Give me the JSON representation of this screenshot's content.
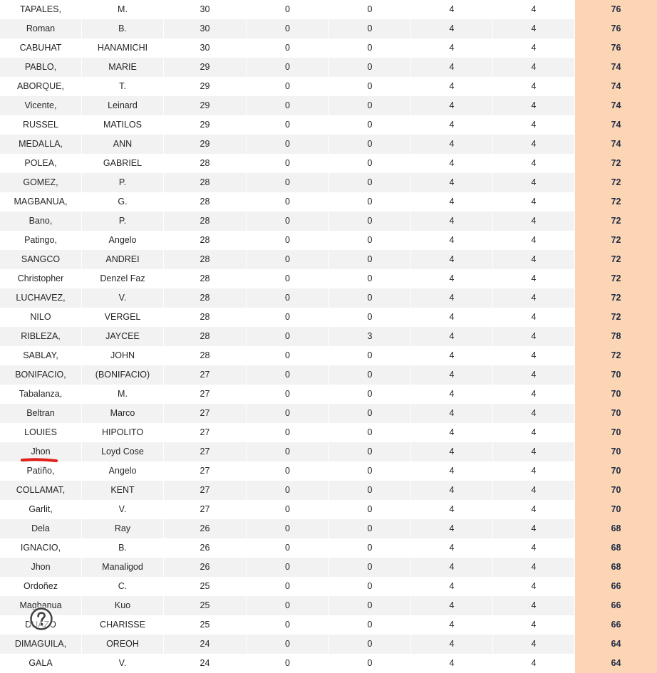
{
  "rows": [
    [
      "TAPALES,",
      "M.",
      "30",
      "0",
      "0",
      "4",
      "4",
      "76"
    ],
    [
      "Roman",
      "B.",
      "30",
      "0",
      "0",
      "4",
      "4",
      "76"
    ],
    [
      "CABUHAT",
      "HANAMICHI",
      "30",
      "0",
      "0",
      "4",
      "4",
      "76"
    ],
    [
      "PABLO,",
      "MARIE",
      "29",
      "0",
      "0",
      "4",
      "4",
      "74"
    ],
    [
      "ABORQUE,",
      "T.",
      "29",
      "0",
      "0",
      "4",
      "4",
      "74"
    ],
    [
      "Vicente,",
      "Leinard",
      "29",
      "0",
      "0",
      "4",
      "4",
      "74"
    ],
    [
      "RUSSEL",
      "MATILOS",
      "29",
      "0",
      "0",
      "4",
      "4",
      "74"
    ],
    [
      "MEDALLA,",
      "ANN",
      "29",
      "0",
      "0",
      "4",
      "4",
      "74"
    ],
    [
      "POLEA,",
      "GABRIEL",
      "28",
      "0",
      "0",
      "4",
      "4",
      "72"
    ],
    [
      "GOMEZ,",
      "P.",
      "28",
      "0",
      "0",
      "4",
      "4",
      "72"
    ],
    [
      "MAGBANUA,",
      "G.",
      "28",
      "0",
      "0",
      "4",
      "4",
      "72"
    ],
    [
      "Bano,",
      "P.",
      "28",
      "0",
      "0",
      "4",
      "4",
      "72"
    ],
    [
      "Patingo,",
      "Angelo",
      "28",
      "0",
      "0",
      "4",
      "4",
      "72"
    ],
    [
      "SANGCO",
      "ANDREI",
      "28",
      "0",
      "0",
      "4",
      "4",
      "72"
    ],
    [
      "Christopher",
      "Denzel Faz",
      "28",
      "0",
      "0",
      "4",
      "4",
      "72"
    ],
    [
      "LUCHAVEZ,",
      "V.",
      "28",
      "0",
      "0",
      "4",
      "4",
      "72"
    ],
    [
      "NILO",
      "VERGEL",
      "28",
      "0",
      "0",
      "4",
      "4",
      "72"
    ],
    [
      "RIBLEZA,",
      "JAYCEE",
      "28",
      "0",
      "3",
      "4",
      "4",
      "78"
    ],
    [
      "SABLAY,",
      "JOHN",
      "28",
      "0",
      "0",
      "4",
      "4",
      "72"
    ],
    [
      "BONIFACIO,",
      "(BONIFACIO)",
      "27",
      "0",
      "0",
      "4",
      "4",
      "70"
    ],
    [
      "Tabalanza,",
      "M.",
      "27",
      "0",
      "0",
      "4",
      "4",
      "70"
    ],
    [
      "Beltran",
      "Marco",
      "27",
      "0",
      "0",
      "4",
      "4",
      "70"
    ],
    [
      "LOUIES",
      "HIPOLITO",
      "27",
      "0",
      "0",
      "4",
      "4",
      "70"
    ],
    [
      "Jhon",
      "Loyd Cose",
      "27",
      "0",
      "0",
      "4",
      "4",
      "70"
    ],
    [
      "Patiño,",
      "Angelo",
      "27",
      "0",
      "0",
      "4",
      "4",
      "70"
    ],
    [
      "COLLAMAT,",
      "KENT",
      "27",
      "0",
      "0",
      "4",
      "4",
      "70"
    ],
    [
      "Garlit,",
      "V.",
      "27",
      "0",
      "0",
      "4",
      "4",
      "70"
    ],
    [
      "Dela",
      "Ray",
      "26",
      "0",
      "0",
      "4",
      "4",
      "68"
    ],
    [
      "IGNACIO,",
      "B.",
      "26",
      "0",
      "0",
      "4",
      "4",
      "68"
    ],
    [
      "Jhon",
      "Manaligod",
      "26",
      "0",
      "0",
      "4",
      "4",
      "68"
    ],
    [
      "Ordoñez",
      "C.",
      "25",
      "0",
      "0",
      "4",
      "4",
      "66"
    ],
    [
      "Magbanua",
      "Kuo",
      "25",
      "0",
      "0",
      "4",
      "4",
      "66"
    ],
    [
      "DUAZO",
      "CHARISSE",
      "25",
      "0",
      "0",
      "4",
      "4",
      "66"
    ],
    [
      "DIMAGUILA,",
      "OREOH",
      "24",
      "0",
      "0",
      "4",
      "4",
      "64"
    ],
    [
      "GALA",
      "V.",
      "24",
      "0",
      "0",
      "4",
      "4",
      "64"
    ]
  ],
  "colors": {
    "total_fill": "#fcd5b4",
    "band_fill": "#f2f2f2",
    "annotation_red": "#e0201b"
  },
  "icons": {
    "annotation": "red-underline-mark",
    "help": "help-circle-icon"
  }
}
